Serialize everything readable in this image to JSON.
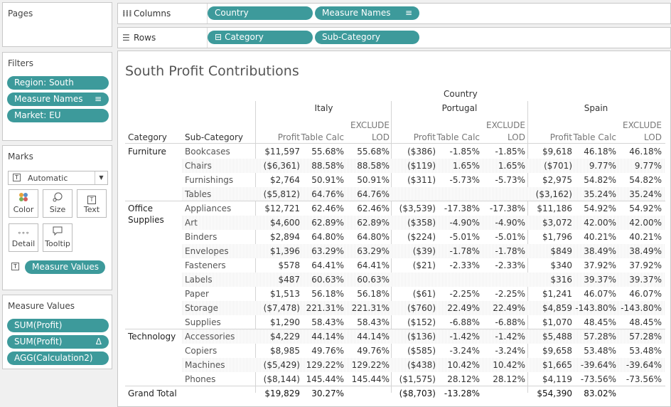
{
  "pages": {
    "title": "Pages"
  },
  "filters": {
    "title": "Filters",
    "items": [
      "Region: South",
      "Measure Names",
      "Market: EU"
    ]
  },
  "marks": {
    "title": "Marks",
    "type_value": "Automatic",
    "buttons": [
      {
        "label": "Color"
      },
      {
        "label": "Size"
      },
      {
        "label": "Text"
      },
      {
        "label": "Detail"
      },
      {
        "label": "Tooltip"
      }
    ],
    "pill": "Measure Values"
  },
  "measure_values": {
    "title": "Measure Values",
    "items": [
      "SUM(Profit)",
      "SUM(Profit)",
      "AGG(Calculation2)"
    ],
    "delta": "Δ"
  },
  "columns": {
    "label": "Columns",
    "pills": [
      "Country",
      "Measure Names"
    ]
  },
  "rows": {
    "label": "Rows",
    "pills": [
      "Category",
      "Sub-Category"
    ],
    "collapse": "⊟"
  },
  "view": {
    "title": "South Profit Contributions",
    "country_header": "Country",
    "countries": [
      "Italy",
      "Portugal",
      "Spain"
    ],
    "row_headers": [
      "Category",
      "Sub-Category"
    ],
    "measures": [
      "Profit",
      "Table Calc",
      "EXCLUDE",
      "LOD"
    ],
    "groups": [
      {
        "category": "Furniture",
        "rows": [
          {
            "sub": "Bookcases",
            "v": [
              "$11,597",
              "55.68%",
              "55.68%",
              "($386)",
              "-1.85%",
              "-1.85%",
              "$9,618",
              "46.18%",
              "46.18%"
            ]
          },
          {
            "sub": "Chairs",
            "v": [
              "($6,361)",
              "88.58%",
              "88.58%",
              "($119)",
              "1.65%",
              "1.65%",
              "($701)",
              "9.77%",
              "9.77%"
            ]
          },
          {
            "sub": "Furnishings",
            "v": [
              "$2,764",
              "50.91%",
              "50.91%",
              "($311)",
              "-5.73%",
              "-5.73%",
              "$2,975",
              "54.82%",
              "54.82%"
            ]
          },
          {
            "sub": "Tables",
            "v": [
              "($5,812)",
              "64.76%",
              "64.76%",
              "",
              "",
              "",
              "($3,162)",
              "35.24%",
              "35.24%"
            ]
          }
        ]
      },
      {
        "category": "Office Supplies",
        "rows": [
          {
            "sub": "Appliances",
            "v": [
              "$12,721",
              "62.46%",
              "62.46%",
              "($3,539)",
              "-17.38%",
              "-17.38%",
              "$11,186",
              "54.92%",
              "54.92%"
            ]
          },
          {
            "sub": "Art",
            "v": [
              "$4,600",
              "62.89%",
              "62.89%",
              "($358)",
              "-4.90%",
              "-4.90%",
              "$3,072",
              "42.00%",
              "42.00%"
            ]
          },
          {
            "sub": "Binders",
            "v": [
              "$2,894",
              "64.80%",
              "64.80%",
              "($224)",
              "-5.01%",
              "-5.01%",
              "$1,796",
              "40.21%",
              "40.21%"
            ]
          },
          {
            "sub": "Envelopes",
            "v": [
              "$1,396",
              "63.29%",
              "63.29%",
              "($39)",
              "-1.78%",
              "-1.78%",
              "$849",
              "38.49%",
              "38.49%"
            ]
          },
          {
            "sub": "Fasteners",
            "v": [
              "$578",
              "64.41%",
              "64.41%",
              "($21)",
              "-2.33%",
              "-2.33%",
              "$340",
              "37.92%",
              "37.92%"
            ]
          },
          {
            "sub": "Labels",
            "v": [
              "$487",
              "60.63%",
              "60.63%",
              "",
              "",
              "",
              "$316",
              "39.37%",
              "39.37%"
            ]
          },
          {
            "sub": "Paper",
            "v": [
              "$1,513",
              "56.18%",
              "56.18%",
              "($61)",
              "-2.25%",
              "-2.25%",
              "$1,241",
              "46.07%",
              "46.07%"
            ]
          },
          {
            "sub": "Storage",
            "v": [
              "($7,478)",
              "221.31%",
              "221.31%",
              "($760)",
              "22.49%",
              "22.49%",
              "$4,859",
              "-143.80%",
              "-143.80%"
            ]
          },
          {
            "sub": "Supplies",
            "v": [
              "$1,290",
              "58.43%",
              "58.43%",
              "($152)",
              "-6.88%",
              "-6.88%",
              "$1,070",
              "48.45%",
              "48.45%"
            ]
          }
        ]
      },
      {
        "category": "Technology",
        "rows": [
          {
            "sub": "Accessories",
            "v": [
              "$4,229",
              "44.14%",
              "44.14%",
              "($136)",
              "-1.42%",
              "-1.42%",
              "$5,488",
              "57.28%",
              "57.28%"
            ]
          },
          {
            "sub": "Copiers",
            "v": [
              "$8,985",
              "49.76%",
              "49.76%",
              "($585)",
              "-3.24%",
              "-3.24%",
              "$9,658",
              "53.48%",
              "53.48%"
            ]
          },
          {
            "sub": "Machines",
            "v": [
              "($5,429)",
              "129.22%",
              "129.22%",
              "($438)",
              "10.42%",
              "10.42%",
              "$1,665",
              "-39.64%",
              "-39.64%"
            ]
          },
          {
            "sub": "Phones",
            "v": [
              "($8,144)",
              "145.44%",
              "145.44%",
              "($1,575)",
              "28.12%",
              "28.12%",
              "$4,119",
              "-73.56%",
              "-73.56%"
            ]
          }
        ]
      }
    ],
    "grand_total": {
      "label": "Grand Total",
      "v": [
        "$19,829",
        "30.27%",
        "",
        "($8,703)",
        "-13.28%",
        "",
        "$54,390",
        "83.02%",
        ""
      ]
    }
  }
}
